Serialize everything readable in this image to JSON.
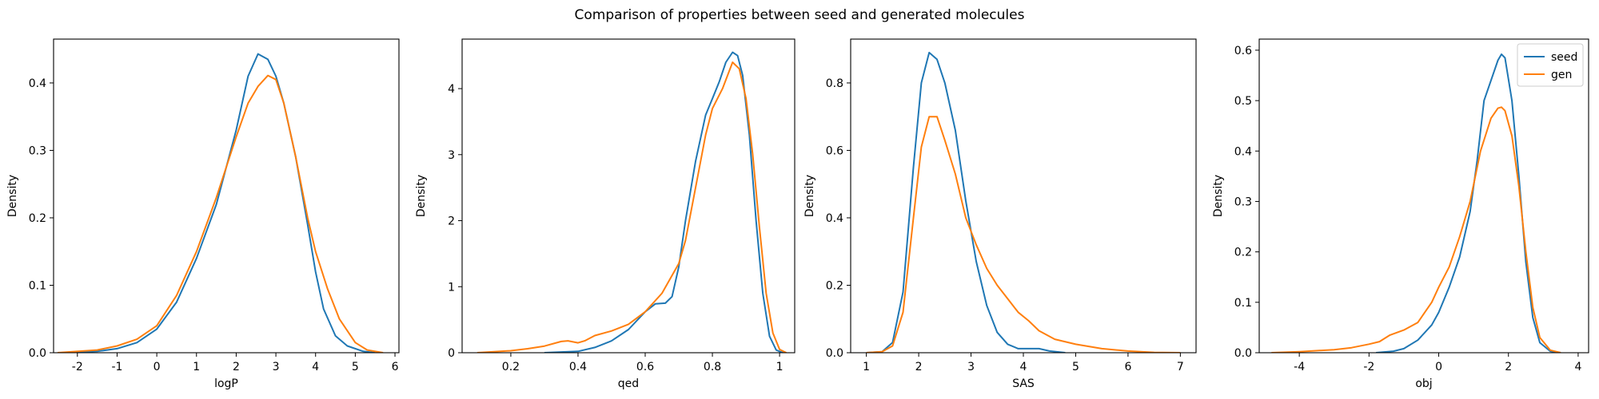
{
  "figure": {
    "title": "Comparison of properties between seed and generated molecules"
  },
  "colors": {
    "seed": "#1f77b4",
    "gen": "#ff7f0e",
    "axes": "#000000",
    "background": "#ffffff"
  },
  "chart_data": [
    {
      "type": "line",
      "xlabel": "logP",
      "ylabel": "Density",
      "xlim": [
        -2.6,
        6.1
      ],
      "ylim": [
        0,
        0.465
      ],
      "xticks": [
        -2,
        -1,
        0,
        1,
        2,
        3,
        4,
        5,
        6
      ],
      "yticks": [
        0.0,
        0.1,
        0.2,
        0.3,
        0.4
      ],
      "yticklabels": [
        "0.0",
        "0.1",
        "0.2",
        "0.3",
        "0.4"
      ],
      "legend": null,
      "series": [
        {
          "name": "seed",
          "x": [
            -2.4,
            -1.5,
            -1.0,
            -0.5,
            0.0,
            0.5,
            1.0,
            1.5,
            2.0,
            2.3,
            2.55,
            2.8,
            3.0,
            3.2,
            3.5,
            3.8,
            4.0,
            4.2,
            4.5,
            4.8,
            5.2,
            5.5
          ],
          "y": [
            0.0,
            0.002,
            0.006,
            0.015,
            0.035,
            0.075,
            0.14,
            0.22,
            0.33,
            0.41,
            0.443,
            0.435,
            0.41,
            0.37,
            0.29,
            0.19,
            0.12,
            0.065,
            0.025,
            0.01,
            0.002,
            0.0
          ]
        },
        {
          "name": "gen",
          "x": [
            -2.5,
            -1.5,
            -1.0,
            -0.5,
            0.0,
            0.5,
            1.0,
            1.5,
            2.0,
            2.3,
            2.55,
            2.8,
            3.0,
            3.2,
            3.5,
            3.8,
            4.0,
            4.3,
            4.6,
            5.0,
            5.3,
            5.7
          ],
          "y": [
            0.0,
            0.004,
            0.01,
            0.02,
            0.04,
            0.085,
            0.15,
            0.23,
            0.32,
            0.37,
            0.395,
            0.411,
            0.405,
            0.37,
            0.29,
            0.2,
            0.15,
            0.095,
            0.05,
            0.015,
            0.004,
            0.0
          ]
        }
      ]
    },
    {
      "type": "line",
      "xlabel": "qed",
      "ylabel": "Density",
      "xlim": [
        0.055,
        1.045
      ],
      "ylim": [
        0,
        4.75
      ],
      "xticks": [
        0.2,
        0.4,
        0.6,
        0.8,
        1.0
      ],
      "yticks": [
        0,
        1,
        2,
        3,
        4
      ],
      "yticklabels": [
        "0",
        "1",
        "2",
        "3",
        "4"
      ],
      "legend": null,
      "series": [
        {
          "name": "seed",
          "x": [
            0.3,
            0.4,
            0.45,
            0.5,
            0.55,
            0.6,
            0.63,
            0.66,
            0.68,
            0.7,
            0.72,
            0.75,
            0.78,
            0.8,
            0.82,
            0.84,
            0.86,
            0.875,
            0.89,
            0.91,
            0.93,
            0.95,
            0.97,
            0.99,
            1.01
          ],
          "y": [
            0.0,
            0.02,
            0.08,
            0.18,
            0.35,
            0.62,
            0.74,
            0.75,
            0.85,
            1.3,
            2.0,
            2.9,
            3.6,
            3.85,
            4.1,
            4.4,
            4.55,
            4.5,
            4.2,
            3.3,
            2.0,
            0.9,
            0.25,
            0.04,
            0.0
          ]
        },
        {
          "name": "gen",
          "x": [
            0.1,
            0.2,
            0.25,
            0.3,
            0.35,
            0.37,
            0.4,
            0.42,
            0.45,
            0.5,
            0.55,
            0.6,
            0.65,
            0.7,
            0.72,
            0.75,
            0.78,
            0.8,
            0.83,
            0.86,
            0.88,
            0.9,
            0.92,
            0.94,
            0.96,
            0.98,
            1.0,
            1.02
          ],
          "y": [
            0.0,
            0.03,
            0.06,
            0.1,
            0.17,
            0.18,
            0.15,
            0.18,
            0.26,
            0.33,
            0.43,
            0.62,
            0.9,
            1.35,
            1.7,
            2.5,
            3.3,
            3.7,
            4.0,
            4.4,
            4.3,
            3.85,
            3.0,
            1.9,
            0.9,
            0.3,
            0.05,
            0.0
          ]
        }
      ]
    },
    {
      "type": "line",
      "xlabel": "SAS",
      "ylabel": "Density",
      "xlim": [
        0.7,
        7.3
      ],
      "ylim": [
        0,
        0.93
      ],
      "xticks": [
        1,
        2,
        3,
        4,
        5,
        6,
        7
      ],
      "yticks": [
        0.0,
        0.2,
        0.4,
        0.6,
        0.8
      ],
      "yticklabels": [
        "0.0",
        "0.2",
        "0.4",
        "0.6",
        "0.8"
      ],
      "legend": null,
      "series": [
        {
          "name": "seed",
          "x": [
            1.0,
            1.3,
            1.5,
            1.7,
            1.9,
            2.05,
            2.2,
            2.35,
            2.5,
            2.7,
            2.9,
            3.1,
            3.3,
            3.5,
            3.7,
            3.9,
            4.1,
            4.3,
            4.5,
            4.8
          ],
          "y": [
            0.0,
            0.003,
            0.03,
            0.18,
            0.55,
            0.8,
            0.89,
            0.87,
            0.8,
            0.66,
            0.45,
            0.27,
            0.14,
            0.06,
            0.025,
            0.012,
            0.012,
            0.012,
            0.005,
            0.0
          ]
        },
        {
          "name": "gen",
          "x": [
            1.0,
            1.3,
            1.5,
            1.7,
            1.9,
            2.05,
            2.2,
            2.35,
            2.5,
            2.7,
            2.9,
            3.1,
            3.3,
            3.5,
            3.7,
            3.9,
            4.1,
            4.3,
            4.6,
            5.0,
            5.5,
            6.0,
            6.5,
            7.0
          ],
          "y": [
            0.0,
            0.003,
            0.02,
            0.12,
            0.4,
            0.61,
            0.7,
            0.7,
            0.63,
            0.53,
            0.4,
            0.32,
            0.25,
            0.2,
            0.16,
            0.12,
            0.095,
            0.065,
            0.04,
            0.025,
            0.012,
            0.005,
            0.001,
            0.0
          ]
        }
      ]
    },
    {
      "type": "line",
      "xlabel": "obj",
      "ylabel": "Density",
      "xlim": [
        -5.15,
        4.3
      ],
      "ylim": [
        0,
        0.622
      ],
      "xticks": [
        -4,
        -2,
        0,
        2,
        4
      ],
      "yticks": [
        0.0,
        0.1,
        0.2,
        0.3,
        0.4,
        0.5,
        0.6
      ],
      "yticklabels": [
        "0.0",
        "0.1",
        "0.2",
        "0.3",
        "0.4",
        "0.5",
        "0.6"
      ],
      "legend": {
        "loc": "upper right",
        "entries": [
          "seed",
          "gen"
        ]
      },
      "series": [
        {
          "name": "seed",
          "x": [
            -1.8,
            -1.3,
            -1.0,
            -0.6,
            -0.2,
            0.0,
            0.3,
            0.6,
            0.9,
            1.1,
            1.3,
            1.5,
            1.7,
            1.8,
            1.9,
            2.1,
            2.3,
            2.5,
            2.7,
            2.9,
            3.2,
            3.5
          ],
          "y": [
            0.0,
            0.003,
            0.008,
            0.025,
            0.055,
            0.08,
            0.13,
            0.19,
            0.28,
            0.38,
            0.5,
            0.54,
            0.58,
            0.592,
            0.585,
            0.5,
            0.35,
            0.18,
            0.07,
            0.02,
            0.003,
            0.0
          ]
        },
        {
          "name": "gen",
          "x": [
            -4.8,
            -4.0,
            -3.0,
            -2.5,
            -2.0,
            -1.7,
            -1.4,
            -1.0,
            -0.6,
            -0.2,
            0.0,
            0.3,
            0.6,
            0.9,
            1.2,
            1.5,
            1.7,
            1.8,
            1.9,
            2.1,
            2.3,
            2.5,
            2.7,
            2.9,
            3.2,
            3.5
          ],
          "y": [
            0.0,
            0.002,
            0.006,
            0.01,
            0.017,
            0.022,
            0.035,
            0.045,
            0.06,
            0.1,
            0.13,
            0.17,
            0.23,
            0.3,
            0.4,
            0.465,
            0.485,
            0.487,
            0.48,
            0.43,
            0.33,
            0.2,
            0.09,
            0.03,
            0.005,
            0.0
          ]
        }
      ]
    }
  ]
}
